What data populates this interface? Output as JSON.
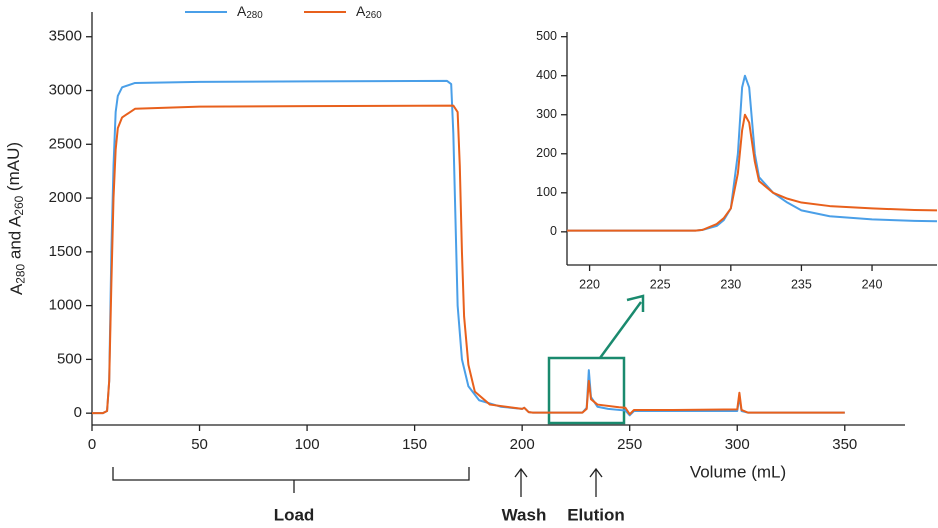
{
  "chart_data": [
    {
      "type": "line",
      "xlabel": "Volume (mL)",
      "ylabel": "A280 and A260 (mAU)",
      "xlim": [
        0,
        378
      ],
      "ylim": [
        -110,
        3730
      ],
      "xticks": [
        0,
        50,
        100,
        150,
        200,
        250,
        300,
        350
      ],
      "yticks": [
        0,
        500,
        1000,
        1500,
        2000,
        2500,
        3000,
        3500
      ],
      "legend": "top",
      "annotations": [
        "Load",
        "Wash",
        "Elution"
      ],
      "series": [
        {
          "name": "A280",
          "color": "#4a9fe8",
          "x": [
            0,
            5,
            7,
            8,
            9,
            10,
            11,
            12,
            14,
            20,
            50,
            100,
            165,
            167,
            168,
            169,
            170,
            172,
            175,
            180,
            190,
            200,
            201,
            203,
            205,
            228,
            230,
            231,
            232,
            235,
            240,
            245,
            248,
            250,
            252,
            300,
            301,
            302,
            305,
            350
          ],
          "values": [
            0,
            0,
            20,
            300,
            1500,
            2300,
            2800,
            2950,
            3030,
            3070,
            3080,
            3085,
            3090,
            3060,
            2600,
            1800,
            1000,
            500,
            250,
            120,
            60,
            40,
            50,
            10,
            5,
            5,
            50,
            400,
            150,
            60,
            40,
            30,
            25,
            -20,
            20,
            20,
            150,
            20,
            5,
            5
          ]
        },
        {
          "name": "A260",
          "color": "#e8601c",
          "x": [
            0,
            5,
            7,
            8,
            9,
            10,
            11,
            12,
            14,
            20,
            50,
            100,
            168,
            170,
            171,
            172,
            173,
            175,
            178,
            185,
            200,
            201,
            203,
            205,
            228,
            230,
            231,
            232,
            235,
            245,
            248,
            250,
            252,
            270,
            300,
            301,
            302,
            305,
            350
          ],
          "values": [
            0,
            0,
            20,
            300,
            1200,
            2000,
            2450,
            2650,
            2750,
            2830,
            2850,
            2855,
            2860,
            2800,
            2300,
            1500,
            900,
            450,
            200,
            80,
            40,
            50,
            10,
            5,
            5,
            40,
            300,
            130,
            80,
            55,
            50,
            -10,
            30,
            30,
            35,
            190,
            30,
            5,
            5
          ]
        }
      ]
    },
    {
      "type": "line",
      "xlim": [
        218.4,
        244.6
      ],
      "ylim": [
        -85,
        512
      ],
      "xticks": [
        220,
        225,
        230,
        235,
        240
      ],
      "yticks": [
        0,
        100,
        200,
        300,
        400,
        500
      ],
      "series": [
        {
          "name": "A280",
          "color": "#4a9fe8",
          "x": [
            218.4,
            226,
            227.5,
            228,
            229,
            229.5,
            230,
            230.5,
            230.8,
            231,
            231.3,
            231.7,
            232,
            233,
            234,
            235,
            237,
            240,
            243,
            244.6
          ],
          "values": [
            3,
            3,
            3,
            5,
            15,
            30,
            60,
            200,
            370,
            400,
            370,
            200,
            140,
            100,
            75,
            55,
            40,
            32,
            28,
            27
          ]
        },
        {
          "name": "A260",
          "color": "#e8601c",
          "x": [
            218.4,
            227.5,
            228,
            229,
            229.5,
            230,
            230.5,
            230.8,
            231,
            231.3,
            231.7,
            232,
            233,
            234,
            235,
            237,
            240,
            243,
            244.6
          ],
          "values": [
            3,
            3,
            5,
            20,
            35,
            60,
            150,
            260,
            300,
            280,
            180,
            130,
            100,
            85,
            75,
            66,
            60,
            56,
            55
          ]
        }
      ]
    }
  ]
}
